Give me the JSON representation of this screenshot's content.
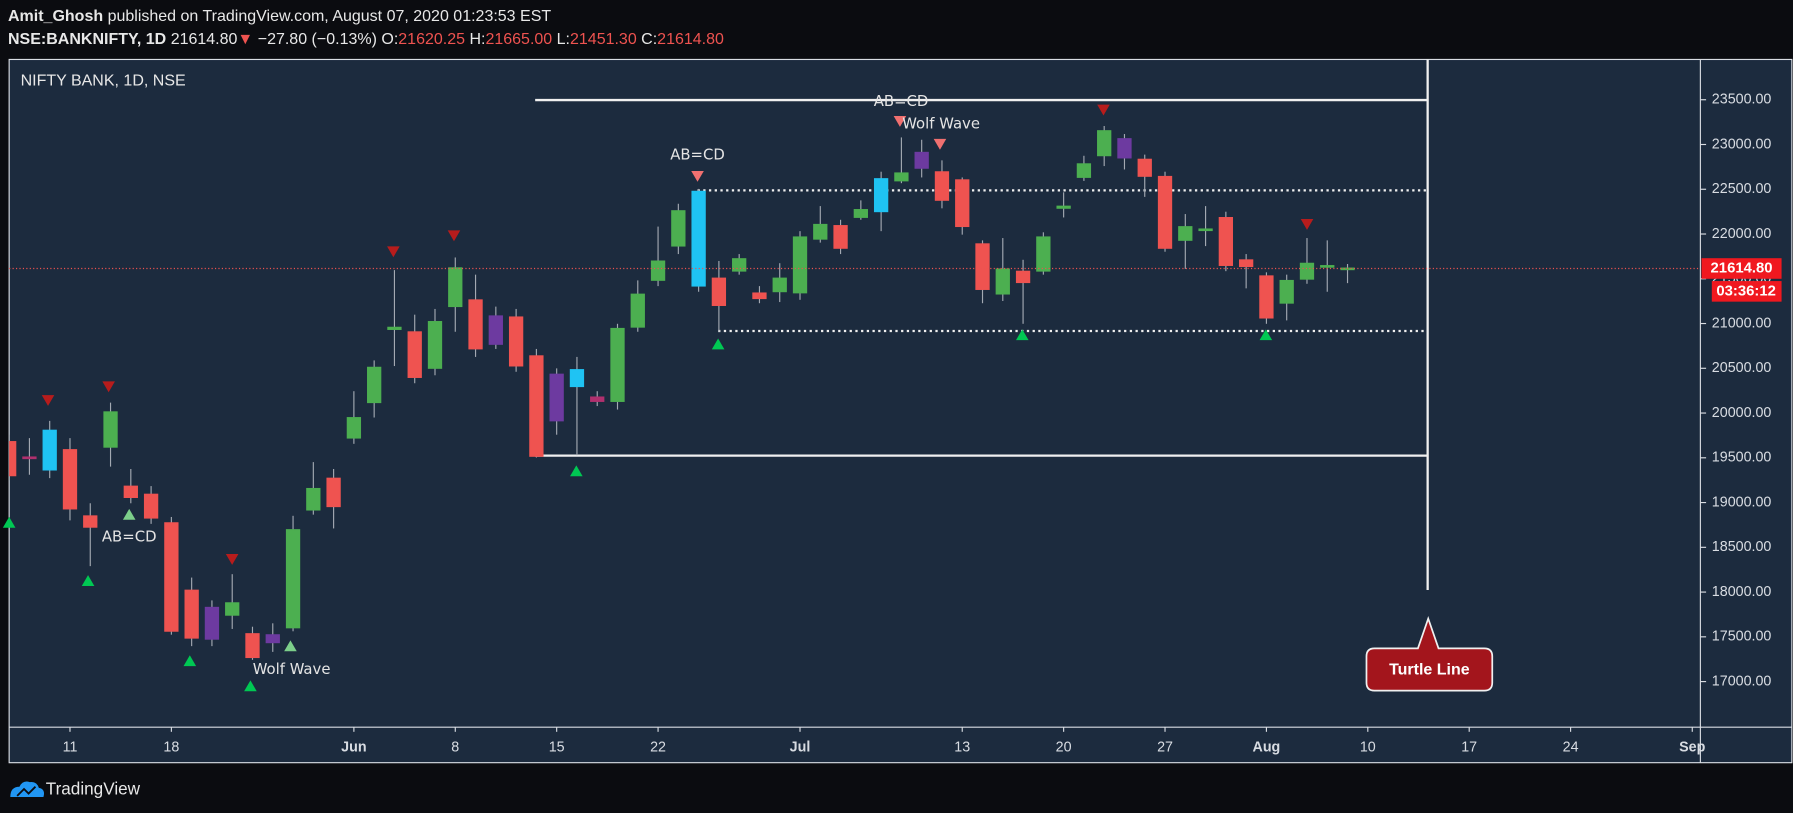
{
  "header": {
    "author": "Amit_Ghosh",
    "published": " published on TradingView.com, August 07, 2020 01:23:53 EST",
    "symbol": "NSE:BANKNIFTY, 1D",
    "last": "21614.80",
    "arrow": "▼",
    "change": "−27.80 (−0.13%)",
    "o_label": "O:",
    "o": "21620.25",
    "h_label": "H:",
    "h": "21665.00",
    "l_label": "L:",
    "l": "21451.30",
    "c_label": "C:",
    "c": "21614.80"
  },
  "chart_data": {
    "type": "candlestick",
    "title": "NIFTY BANK, 1D, NSE",
    "x": [
      0,
      1,
      2,
      3,
      4,
      5,
      6,
      7,
      8,
      9,
      10,
      11,
      12,
      13,
      14,
      15,
      16,
      17,
      18,
      19,
      20,
      21,
      22,
      23,
      24,
      25,
      26,
      27,
      28,
      29,
      30,
      31,
      32,
      33,
      34,
      35,
      36,
      37,
      38,
      39,
      40,
      41,
      42,
      43,
      44,
      45,
      46,
      47,
      48,
      49,
      50,
      51,
      52,
      53,
      54,
      55,
      56,
      57,
      58,
      59,
      60,
      61,
      62,
      63,
      64,
      65,
      66
    ],
    "open": [
      19682,
      19510,
      19363,
      19592,
      18852,
      19618,
      19184,
      19094,
      18775,
      18022,
      17473,
      17741,
      17536,
      17434,
      17600,
      18916,
      19273,
      19720,
      20116,
      20933,
      20908,
      20499,
      21189,
      21265,
      21086,
      21074,
      20640,
      20435,
      20295,
      20180,
      20129,
      20959,
      21482,
      21865,
      22478,
      21508,
      21585,
      21342,
      21355,
      21342,
      21942,
      22095,
      22185,
      22249,
      22593,
      22734,
      22696,
      22606,
      21891,
      21329,
      21585,
      21585,
      22287,
      22632,
      22874,
      23066,
      22836,
      22644,
      21929,
      22057,
      22185,
      21712,
      21533,
      21227,
      21495,
      21636,
      21620.25
    ],
    "high": [
      19758,
      19720,
      19912,
      19720,
      18992,
      20116,
      19375,
      19184,
      18839,
      18162,
      17907,
      18200,
      17613,
      17651,
      18852,
      19452,
      19375,
      20244,
      20588,
      21597,
      21099,
      21163,
      21738,
      21546,
      21189,
      21163,
      20716,
      20499,
      20627,
      20244,
      20997,
      21482,
      22083,
      22338,
      22504,
      21699,
      21776,
      21418,
      21674,
      22032,
      22312,
      22159,
      22376,
      22696,
      23079,
      23053,
      22823,
      22632,
      21929,
      21955,
      21712,
      22019,
      22466,
      22874,
      23206,
      23117,
      22887,
      22696,
      22223,
      22312,
      22249,
      21776,
      21572,
      21546,
      21955,
      21929,
      21665
    ],
    "low": [
      19248,
      19310,
      19273,
      18801,
      18290,
      19401,
      18992,
      18762,
      17524,
      17396,
      17396,
      17588,
      17243,
      17332,
      17562,
      18865,
      18711,
      19656,
      19950,
      20525,
      20333,
      20422,
      20908,
      20627,
      20716,
      20461,
      19503,
      19758,
      19529,
      20078,
      20039,
      20908,
      21418,
      21776,
      21355,
      20908,
      21546,
      21227,
      21240,
      21265,
      21904,
      21776,
      22159,
      22032,
      22568,
      22632,
      22287,
      21993,
      21227,
      21252,
      20997,
      21546,
      22185,
      22593,
      22759,
      22721,
      22415,
      21802,
      21610,
      21865,
      21585,
      21393,
      20997,
      21035,
      21444,
      21355,
      21451.3
    ],
    "close": [
      19299,
      19490,
      19809,
      18928,
      18724,
      20014,
      19056,
      18826,
      17562,
      17485,
      17830,
      17881,
      17268,
      17524,
      18698,
      19158,
      18954,
      19950,
      20512,
      20959,
      20397,
      21023,
      21623,
      20716,
      20767,
      20525,
      19516,
      19912,
      20486,
      20129,
      20946,
      21329,
      21699,
      22261,
      21418,
      21201,
      21725,
      21278,
      21508,
      21968,
      22108,
      21840,
      22274,
      22619,
      22683,
      22913,
      22376,
      22083,
      21380,
      21610,
      21457,
      21968,
      22312,
      22785,
      23155,
      22849,
      22644,
      21840,
      22083,
      22044,
      21648,
      21636,
      21061,
      21482,
      21674,
      21648,
      21614.8
    ],
    "colors": [
      "#ef5350",
      "#b0306e",
      "#1fc3f3",
      "#ef5350",
      "#ef5350",
      "#4caf50",
      "#ef5350",
      "#ef5350",
      "#ef5350",
      "#ef5350",
      "#6d3aa0",
      "#4caf50",
      "#ef5350",
      "#6d3aa0",
      "#4caf50",
      "#4caf50",
      "#ef5350",
      "#4caf50",
      "#4caf50",
      "#4caf50",
      "#ef5350",
      "#4caf50",
      "#4caf50",
      "#ef5350",
      "#6d3aa0",
      "#ef5350",
      "#ef5350",
      "#6d3aa0",
      "#1fc3f3",
      "#b0306e",
      "#4caf50",
      "#4caf50",
      "#4caf50",
      "#4caf50",
      "#1fc3f3",
      "#ef5350",
      "#4caf50",
      "#ef5350",
      "#4caf50",
      "#4caf50",
      "#4caf50",
      "#ef5350",
      "#4caf50",
      "#1fc3f3",
      "#4caf50",
      "#6d3aa0",
      "#ef5350",
      "#ef5350",
      "#ef5350",
      "#4caf50",
      "#ef5350",
      "#4caf50",
      "#4caf50",
      "#4caf50",
      "#4caf50",
      "#6d3aa0",
      "#ef5350",
      "#ef5350",
      "#4caf50",
      "#4caf50",
      "#ef5350",
      "#ef5350",
      "#ef5350",
      "#4caf50",
      "#4caf50",
      "#4caf50",
      "#4caf50"
    ],
    "wick_color": "#a3a9b2",
    "xlim": [
      0,
      83.4
    ],
    "xticks": [
      {
        "value": 3,
        "label": "11"
      },
      {
        "value": 8,
        "label": "18"
      },
      {
        "value": 17,
        "label": "Jun"
      },
      {
        "value": 22,
        "label": "8"
      },
      {
        "value": 27,
        "label": "15"
      },
      {
        "value": 32,
        "label": "22"
      },
      {
        "value": 39,
        "label": "Jul"
      },
      {
        "value": 47,
        "label": "13"
      },
      {
        "value": 52,
        "label": "20"
      },
      {
        "value": 57,
        "label": "27"
      },
      {
        "value": 62,
        "label": "Aug"
      },
      {
        "value": 67,
        "label": "10"
      },
      {
        "value": 72,
        "label": "17"
      },
      {
        "value": 77,
        "label": "24"
      },
      {
        "value": 83,
        "label": "Sep"
      }
    ],
    "ylim": [
      16490,
      23950
    ],
    "yticks": [
      {
        "value": 17000,
        "label": "17000.00"
      },
      {
        "value": 17500,
        "label": "17500.00"
      },
      {
        "value": 18000,
        "label": "18000.00"
      },
      {
        "value": 18500,
        "label": "18500.00"
      },
      {
        "value": 19000,
        "label": "19000.00"
      },
      {
        "value": 19500,
        "label": "19500.00"
      },
      {
        "value": 20000,
        "label": "20000.00"
      },
      {
        "value": 20500,
        "label": "20500.00"
      },
      {
        "value": 21000,
        "label": "21000.00"
      },
      {
        "value": 21500,
        "label": "21500.00"
      },
      {
        "value": 22000,
        "label": "22000.00"
      },
      {
        "value": 22500,
        "label": "22500.00"
      },
      {
        "value": 23000,
        "label": "23000.00"
      },
      {
        "value": 23500,
        "label": "23500.00"
      }
    ],
    "grid": false,
    "last_price_label": "21614.80",
    "countdown": "03:36:12",
    "annotations": [
      "AB=CD",
      "Wolf Wave",
      "AB=CD",
      "AB=CD",
      "Wolf Wave",
      "Turtle Line"
    ]
  },
  "footer": {
    "brand": "TradingView"
  }
}
